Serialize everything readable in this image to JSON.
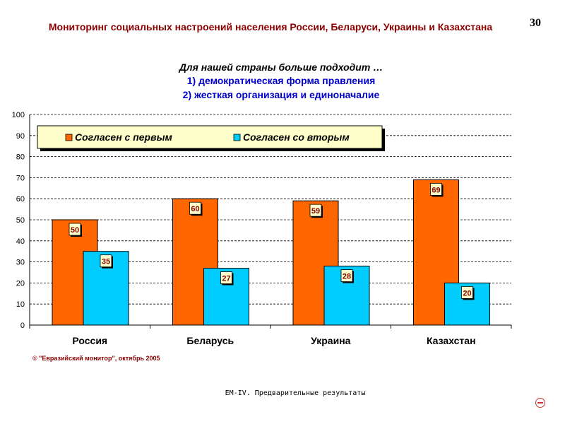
{
  "header": {
    "title": "Мониторинг социальных настроений населения России, Беларуси, Украины и Казахстана",
    "page_number": "30"
  },
  "question": {
    "text": "Для нашей страны больше подходит …",
    "option_1": "1) демократическая форма правления",
    "option_2": "2) жесткая организация и единоначалие"
  },
  "chart_data": {
    "type": "bar",
    "title": "Для нашей страны больше подходит …",
    "categories": [
      "Россия",
      "Беларусь",
      "Украина",
      "Казахстан"
    ],
    "series": [
      {
        "name": "Согласен с первым",
        "values": [
          50,
          60,
          59,
          69
        ],
        "color": "#ff6600"
      },
      {
        "name": "Согласен со вторым",
        "values": [
          35,
          27,
          28,
          20
        ],
        "color": "#00ccff"
      }
    ],
    "ylim": [
      0,
      100
    ],
    "yticks": [
      0,
      10,
      20,
      30,
      40,
      50,
      60,
      70,
      80,
      90,
      100
    ],
    "xlabel": "",
    "ylabel": "",
    "grid": true,
    "legend_position": "top-left",
    "label_bg_color": "#ffffcc"
  },
  "copyright": "© \"Евразийский монитор\", октябрь 2005",
  "footer": "EM-IV. Предварительные результаты"
}
